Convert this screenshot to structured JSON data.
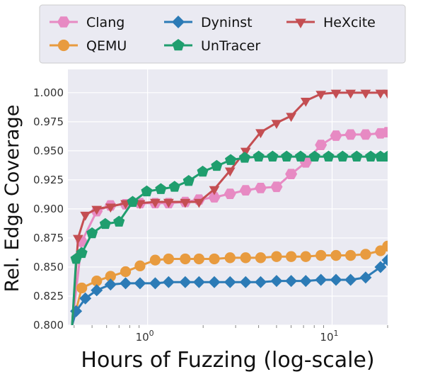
{
  "chart_data": {
    "type": "line",
    "title": "",
    "xlabel": "Hours of Fuzzing (log-scale)",
    "ylabel": "Rel. Edge Coverage",
    "x_scale": "log",
    "xlim": [
      0.37,
      20
    ],
    "ylim": [
      0.8,
      1.02
    ],
    "x_ticks": [
      {
        "value": 1,
        "base": "10",
        "exp": "0"
      },
      {
        "value": 10,
        "base": "10",
        "exp": "1"
      }
    ],
    "y_ticks": [
      0.8,
      0.825,
      0.85,
      0.875,
      0.9,
      0.925,
      0.95,
      0.975,
      1.0
    ],
    "y_tick_labels": [
      "0.800",
      "0.825",
      "0.850",
      "0.875",
      "0.900",
      "0.925",
      "0.950",
      "0.975",
      "1.000"
    ],
    "grid": true,
    "legend_placement": "top (above plot, boxed, 3 columns)",
    "series": [
      {
        "name": "Clang",
        "color": "#e78ac3",
        "marker": "hexagon",
        "x": [
          0.39,
          0.44,
          0.53,
          0.63,
          0.76,
          0.91,
          1.1,
          1.3,
          1.6,
          1.9,
          2.3,
          2.8,
          3.4,
          4.1,
          5.0,
          6.0,
          7.2,
          8.7,
          10.5,
          12.6,
          15.2,
          18.3,
          20
        ],
        "y": [
          0.8,
          0.872,
          0.898,
          0.903,
          0.904,
          0.905,
          0.905,
          0.905,
          0.906,
          0.908,
          0.91,
          0.913,
          0.916,
          0.918,
          0.919,
          0.93,
          0.94,
          0.955,
          0.963,
          0.964,
          0.964,
          0.965,
          0.966
        ]
      },
      {
        "name": "QEMU",
        "color": "#e89b3f",
        "marker": "circle",
        "x": [
          0.39,
          0.44,
          0.53,
          0.63,
          0.76,
          0.91,
          1.1,
          1.3,
          1.6,
          1.9,
          2.3,
          2.8,
          3.4,
          4.1,
          5.0,
          6.0,
          7.2,
          8.7,
          10.5,
          12.6,
          15.2,
          18.3,
          20
        ],
        "y": [
          0.8,
          0.832,
          0.838,
          0.842,
          0.846,
          0.851,
          0.856,
          0.857,
          0.857,
          0.857,
          0.857,
          0.858,
          0.858,
          0.858,
          0.859,
          0.859,
          0.859,
          0.86,
          0.86,
          0.86,
          0.861,
          0.864,
          0.868
        ]
      },
      {
        "name": "Dyninst",
        "color": "#2c7bb6",
        "marker": "diamond",
        "x": [
          0.39,
          0.41,
          0.46,
          0.53,
          0.63,
          0.76,
          0.91,
          1.1,
          1.3,
          1.6,
          1.9,
          2.3,
          2.8,
          3.4,
          4.1,
          5.0,
          6.0,
          7.2,
          8.7,
          10.5,
          12.6,
          15.2,
          18.3,
          20
        ],
        "y": [
          0.8,
          0.812,
          0.823,
          0.83,
          0.835,
          0.836,
          0.836,
          0.836,
          0.837,
          0.837,
          0.837,
          0.837,
          0.837,
          0.837,
          0.837,
          0.838,
          0.838,
          0.838,
          0.839,
          0.839,
          0.839,
          0.841,
          0.85,
          0.856
        ]
      },
      {
        "name": "HeXcite",
        "color": "#c44e52",
        "marker": "triangle-down",
        "x": [
          0.39,
          0.42,
          0.46,
          0.53,
          0.63,
          0.76,
          0.91,
          1.1,
          1.3,
          1.6,
          1.9,
          2.3,
          2.8,
          3.4,
          4.1,
          5.0,
          6.0,
          7.2,
          8.7,
          10.5,
          12.6,
          15.2,
          18.3,
          20
        ],
        "y": [
          0.8,
          0.875,
          0.895,
          0.9,
          0.902,
          0.905,
          0.905,
          0.906,
          0.906,
          0.906,
          0.906,
          0.917,
          0.933,
          0.95,
          0.966,
          0.974,
          0.98,
          0.993,
          0.999,
          1.0,
          1.0,
          1.0,
          1.0,
          1.0
        ]
      },
      {
        "name": "UnTracer",
        "color": "#1f9e6e",
        "marker": "pentagon",
        "x": [
          0.39,
          0.41,
          0.44,
          0.5,
          0.59,
          0.7,
          0.83,
          0.99,
          1.18,
          1.4,
          1.67,
          1.99,
          2.37,
          2.82,
          3.36,
          4.0,
          4.76,
          5.67,
          6.75,
          8.04,
          9.57,
          11.4,
          13.6,
          16.2,
          18.3,
          20
        ],
        "y": [
          0.8,
          0.857,
          0.862,
          0.879,
          0.887,
          0.889,
          0.906,
          0.915,
          0.917,
          0.919,
          0.924,
          0.932,
          0.937,
          0.942,
          0.944,
          0.945,
          0.945,
          0.945,
          0.945,
          0.945,
          0.945,
          0.945,
          0.945,
          0.945,
          0.945,
          0.945
        ]
      }
    ],
    "legend_order": [
      "Clang",
      "QEMU",
      "Dyninst",
      "UnTracer",
      "HeXcite"
    ]
  }
}
